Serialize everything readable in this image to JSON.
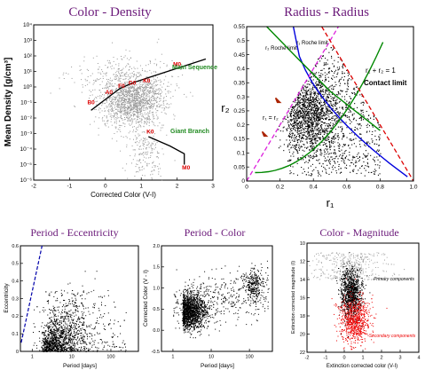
{
  "chart_data": [
    {
      "id": "cd",
      "type": "scatter",
      "title": "Color - Density",
      "xlabel": "Corrected Color (V-I)",
      "ylabel": "Mean Density [g/cm³]",
      "xlim": [
        -2,
        3
      ],
      "ylim_log10": [
        -6,
        4
      ],
      "y_scale": "log",
      "xticks": [
        "-2",
        "-1",
        "0",
        "1",
        "2",
        "3"
      ],
      "yticks": [
        "10⁴",
        "10³",
        "10²",
        "10¹",
        "10⁰",
        "10⁻¹",
        "10⁻²",
        "10⁻³",
        "10⁻⁴",
        "10⁻⁵",
        "10⁻⁶"
      ],
      "series": [
        {
          "points": "dense gray cloud centred near (0.8, 10⁻¹) plus scattered points"
        },
        {
          "name": "Main Sequence",
          "x": [
            -0.4,
            0.0,
            0.4,
            0.8,
            1.2,
            1.6,
            2.0,
            2.4,
            2.8
          ],
          "y_log10": [
            -1.5,
            -0.8,
            -0.1,
            0.3,
            0.6,
            0.9,
            1.2,
            1.5,
            1.8
          ]
        },
        {
          "name": "Giant Branch",
          "x": [
            1.2,
            1.8,
            2.2,
            2.2
          ],
          "y_log10": [
            -3.2,
            -3.8,
            -4.3,
            -5.0
          ]
        }
      ],
      "annotations": [
        "B0",
        "A0",
        "F0",
        "G0",
        "K0",
        "M0",
        "K0",
        "M0"
      ],
      "series_labels": [
        "Main Sequence",
        "Giant Branch"
      ],
      "colors": {
        "points": "#999999",
        "curve": "#000000",
        "spectral": "#dd0000",
        "branch_label": "#228b22"
      }
    },
    {
      "id": "rr",
      "type": "scatter",
      "title": "Radius - Radius",
      "xlabel": "r₁",
      "ylabel": "r₂",
      "xlim": [
        0,
        1
      ],
      "ylim": [
        0,
        0.55
      ],
      "xticks": [
        "0",
        "0.2",
        "0.4",
        "0.6",
        "0.8",
        "1.0"
      ],
      "yticks": [
        "0",
        "0.05",
        "0.1",
        "0.15",
        "0.2",
        "0.25",
        "0.3",
        "0.35",
        "0.4",
        "0.45",
        "0.5",
        "0.55"
      ],
      "annotations": [
        "r₂ Roche limit",
        "r₁ Roche limit",
        "r₁ = r₂",
        "r₁ + r₂ = 1",
        "Contact limit"
      ],
      "series": [
        {
          "name": "r₁ = r₂",
          "x": [
            0,
            0.55
          ],
          "y": [
            0,
            0.55
          ]
        },
        {
          "name": "r₁ + r₂ = 1",
          "x": [
            0.45,
            1.0
          ],
          "y": [
            0.55,
            0
          ]
        }
      ],
      "colors": {
        "points": "#000000",
        "equal_line": "#dd22dd",
        "contact_line": "#dd0000",
        "roche1": "#0000dd",
        "roche2": "#008800",
        "arrows": "#aa2200"
      }
    },
    {
      "id": "pe",
      "type": "scatter",
      "title": "Period - Eccentricity",
      "xlabel": "Period [days]",
      "ylabel": "Eccentricity",
      "x_scale": "log",
      "xlim_log10": [
        -0.3,
        2.7
      ],
      "ylim": [
        0,
        0.6
      ],
      "xticks": [
        "1",
        "10",
        "100"
      ],
      "yticks": [
        "0",
        "0.1",
        "0.2",
        "0.3",
        "0.4",
        "0.5",
        "0.6"
      ],
      "colors": {
        "points": "#000000",
        "limit": "#0000aa"
      }
    },
    {
      "id": "pc",
      "type": "scatter",
      "title": "Period - Color",
      "xlabel": "Period [days]",
      "ylabel": "Corrected Color (V - I)",
      "x_scale": "log",
      "xlim_log10": [
        -0.3,
        2.6
      ],
      "ylim": [
        -0.5,
        2.0
      ],
      "xticks": [
        "1",
        "10",
        "100"
      ],
      "yticks": [
        "-0.5",
        "0.0",
        "0.5",
        "1.0",
        "1.5",
        "2.0"
      ],
      "colors": {
        "points": "#000000"
      }
    },
    {
      "id": "cm",
      "type": "scatter",
      "title": "Color - Magnitude",
      "xlabel": "Extinction corrected color (V-I)",
      "ylabel": "Extinction corrected magnitude (I)",
      "xlim": [
        -2,
        4
      ],
      "ylim": [
        22,
        10
      ],
      "xticks": [
        "-2",
        "-1",
        "0",
        "1",
        "2",
        "3",
        "4"
      ],
      "yticks": [
        "10",
        "12",
        "14",
        "16",
        "18",
        "20",
        "22"
      ],
      "annotations": [
        "Primary components",
        "Secondary components"
      ],
      "series_labels": [
        "Primary components",
        "Secondary components"
      ],
      "colors": {
        "primary": "#000000",
        "secondary": "#ee0000",
        "grey": "#aaaaaa"
      }
    }
  ]
}
